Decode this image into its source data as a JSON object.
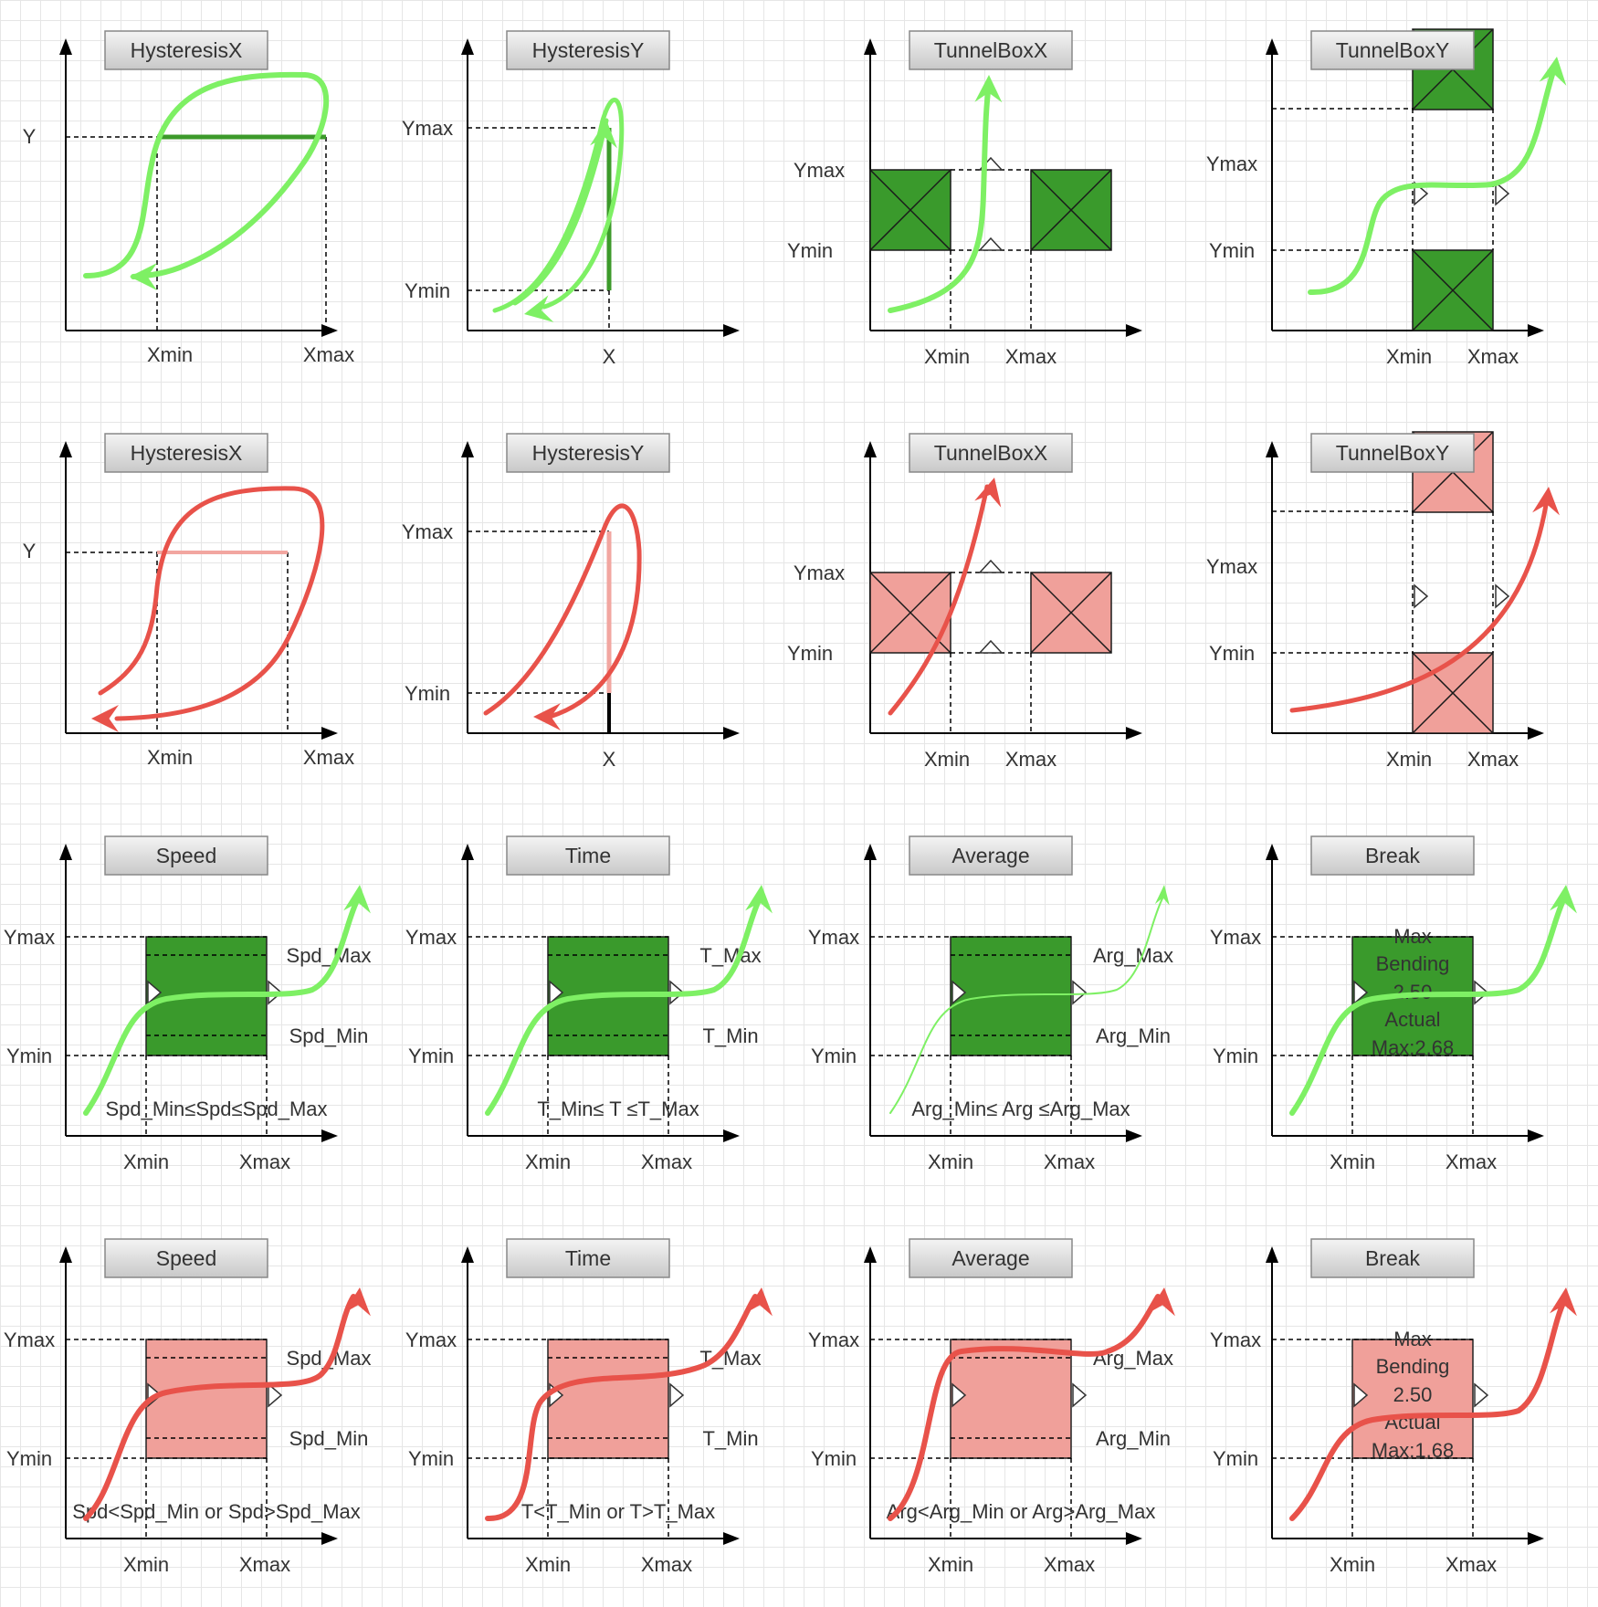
{
  "colors": {
    "ok_fill": "#3a9a2c",
    "ok_curve": "#7ef064",
    "ok_line": "#3c9a2a",
    "fail_fill": "#f0a09a",
    "fail_curve": "#e8524a",
    "fail_line": "#f2a6a0",
    "axis": "#000000",
    "title_bg": "#dcdcdc"
  },
  "rows": [
    {
      "status": "pass",
      "panels": [
        {
          "kind": "hysteresis-x",
          "title": "HysteresisX",
          "y_label": "Y",
          "x_labels": [
            "Xmin",
            "Xmax"
          ]
        },
        {
          "kind": "hysteresis-y",
          "title": "HysteresisY",
          "y_labels": [
            "Ymax",
            "Ymin"
          ],
          "x_label": "X"
        },
        {
          "kind": "tunnelbox-x",
          "title": "TunnelBoxX",
          "y_labels": [
            "Ymax",
            "Ymin"
          ],
          "x_labels": [
            "Xmin",
            "Xmax"
          ]
        },
        {
          "kind": "tunnelbox-y",
          "title": "TunnelBoxY",
          "y_labels": [
            "Ymax",
            "Ymin"
          ],
          "x_labels": [
            "Xmin",
            "Xmax"
          ]
        }
      ]
    },
    {
      "status": "fail",
      "panels": [
        {
          "kind": "hysteresis-x",
          "title": "HysteresisX",
          "y_label": "Y",
          "x_labels": [
            "Xmin",
            "Xmax"
          ]
        },
        {
          "kind": "hysteresis-y",
          "title": "HysteresisY",
          "y_labels": [
            "Ymax",
            "Ymin"
          ],
          "x_label": "X"
        },
        {
          "kind": "tunnelbox-x",
          "title": "TunnelBoxX",
          "y_labels": [
            "Ymax",
            "Ymin"
          ],
          "x_labels": [
            "Xmin",
            "Xmax"
          ]
        },
        {
          "kind": "tunnelbox-y",
          "title": "TunnelBoxY",
          "y_labels": [
            "Ymax",
            "Ymin"
          ],
          "x_labels": [
            "Xmin",
            "Xmax"
          ]
        }
      ]
    },
    {
      "status": "pass",
      "panels": [
        {
          "kind": "window",
          "title": "Speed",
          "y_labels": [
            "Ymax",
            "Ymin"
          ],
          "x_labels": [
            "Xmin",
            "Xmax"
          ],
          "max_label": "Spd_Max",
          "min_label": "Spd_Min",
          "condition": "Spd_Min≤Spd≤Spd_Max"
        },
        {
          "kind": "window",
          "title": "Time",
          "y_labels": [
            "Ymax",
            "Ymin"
          ],
          "x_labels": [
            "Xmin",
            "Xmax"
          ],
          "max_label": "T_Max",
          "min_label": "T_Min",
          "condition": "T_Min≤ T ≤T_Max"
        },
        {
          "kind": "window",
          "title": "Average",
          "y_labels": [
            "Ymax",
            "Ymin"
          ],
          "x_labels": [
            "Xmin",
            "Xmax"
          ],
          "max_label": "Arg_Max",
          "min_label": "Arg_Min",
          "condition": "Arg_Min≤ Arg ≤Arg_Max"
        },
        {
          "kind": "break",
          "title": "Break",
          "y_labels": [
            "Ymax",
            "Ymin"
          ],
          "x_labels": [
            "Xmin",
            "Xmax"
          ],
          "box_text": [
            "Max",
            "Bending",
            "2.50",
            "Actual",
            "Max:2.68"
          ]
        }
      ]
    },
    {
      "status": "fail",
      "panels": [
        {
          "kind": "window",
          "title": "Speed",
          "y_labels": [
            "Ymax",
            "Ymin"
          ],
          "x_labels": [
            "Xmin",
            "Xmax"
          ],
          "max_label": "Spd_Max",
          "min_label": "Spd_Min",
          "condition": "Spd<Spd_Min or Spd>Spd_Max"
        },
        {
          "kind": "window",
          "title": "Time",
          "y_labels": [
            "Ymax",
            "Ymin"
          ],
          "x_labels": [
            "Xmin",
            "Xmax"
          ],
          "max_label": "T_Max",
          "min_label": "T_Min",
          "condition": "T<T_Min or T>T_Max"
        },
        {
          "kind": "window",
          "title": "Average",
          "y_labels": [
            "Ymax",
            "Ymin"
          ],
          "x_labels": [
            "Xmin",
            "Xmax"
          ],
          "max_label": "Arg_Max",
          "min_label": "Arg_Min",
          "condition": "Arg<Arg_Min or Arg>Arg_Max"
        },
        {
          "kind": "break",
          "title": "Break",
          "y_labels": [
            "Ymax",
            "Ymin"
          ],
          "x_labels": [
            "Xmin",
            "Xmax"
          ],
          "box_text": [
            "Max",
            "Bending",
            "2.50",
            "Actual",
            "Max:1.68"
          ]
        }
      ]
    }
  ]
}
